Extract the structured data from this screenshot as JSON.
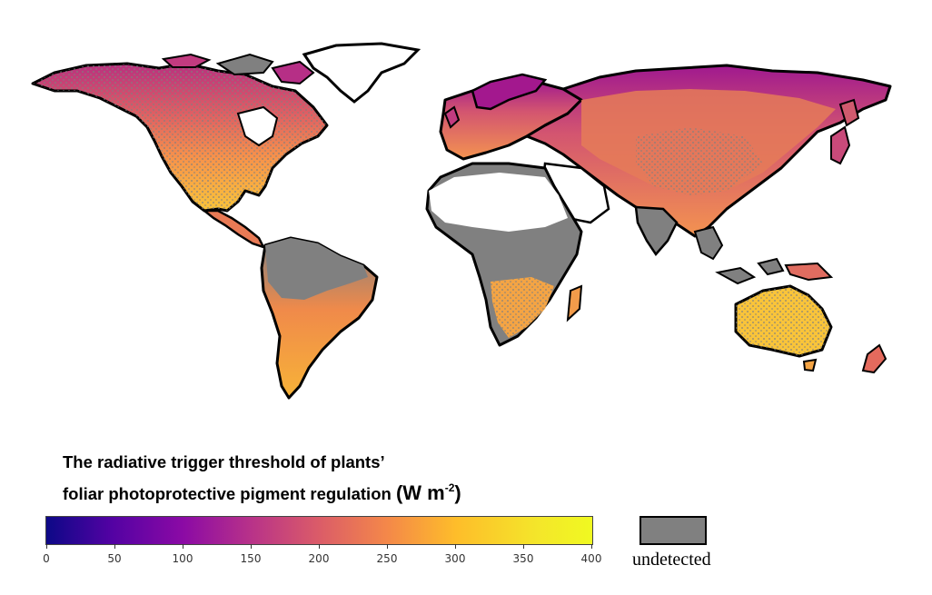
{
  "title": {
    "line1": "The radiative trigger threshold of plants’",
    "line2": "foliar photoprotective pigment regulation",
    "unit": "(W m",
    "unit_exp": "-2",
    "unit_close": ")"
  },
  "colorbar": {
    "min": 0,
    "max": 400,
    "ticks": [
      "0",
      "50",
      "100",
      "150",
      "200",
      "250",
      "300",
      "350",
      "400"
    ],
    "colormap": "plasma"
  },
  "legend": {
    "undetected_label": "undetected",
    "undetected_color": "#808080"
  },
  "colors": {
    "undetected": "#808080",
    "no_data": "#ffffff",
    "outline": "#000000"
  }
}
